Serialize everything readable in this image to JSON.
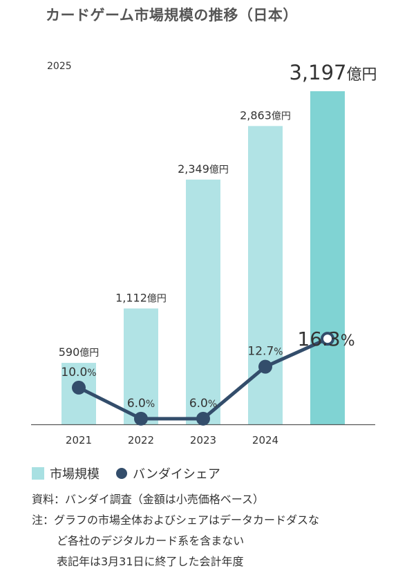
{
  "title": "カードゲーム市場規模の推移（日本）",
  "corner_year": "2025",
  "chart_data": {
    "type": "bar",
    "categories": [
      "2021",
      "2022",
      "2023",
      "2024",
      ""
    ],
    "series": [
      {
        "name": "市場規模",
        "type": "bar",
        "unit": "億円",
        "values": [
          590,
          1112,
          2349,
          2863,
          3197
        ],
        "labels": [
          "590",
          "1,112",
          "2,349",
          "2,863",
          "3,197"
        ],
        "highlight_index": 4
      },
      {
        "name": "バンダイシェア",
        "type": "line",
        "unit": "%",
        "values": [
          10.0,
          6.0,
          6.0,
          12.7,
          16.3
        ],
        "labels": [
          "10.0",
          "6.0",
          "6.0",
          "12.7",
          "16.3"
        ]
      }
    ],
    "colors": {
      "bar": "#b1e3e5",
      "bar_highlight": "#80d3d3",
      "line": "#334d6b",
      "axis": "#555555"
    }
  },
  "legend": {
    "bar_label": "市場規模",
    "line_label": "バンダイシェア"
  },
  "notes": {
    "source": "資料：バンダイ調査（金額は小売価格ベース）",
    "note_line1": "注：グラフの市場全体およびシェアはデータカードダスな",
    "note_line2": "ど各社のデジタルカード系を含まない",
    "note_line3": "表記年は3月31日に終了した会計年度"
  }
}
